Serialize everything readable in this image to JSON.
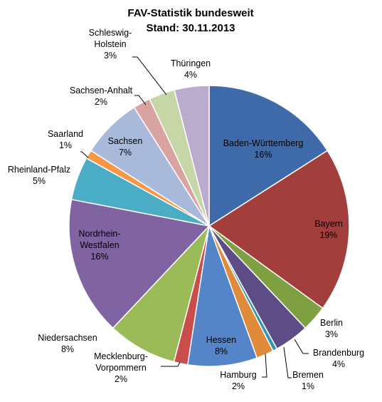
{
  "chart_data": {
    "type": "pie",
    "title": "FAV-Statistik bundesweit",
    "subtitle": "Stand: 30.11.2013",
    "slices": [
      {
        "label": "Baden-Württemberg",
        "value": 16,
        "value_label": "16%",
        "color": "#3F6AAA"
      },
      {
        "label": "Bayern",
        "value": 19,
        "value_label": "19%",
        "color": "#A23F3D"
      },
      {
        "label": "Berlin",
        "value": 3,
        "value_label": "3%",
        "color": "#7FA040"
      },
      {
        "label": "Brandenburg",
        "value": 4,
        "value_label": "4%",
        "color": "#5E4C86"
      },
      {
        "label": "Bremen",
        "value": 0.5,
        "value_label": "1%",
        "color": "#3096B1"
      },
      {
        "label": "Hamburg",
        "value": 2,
        "value_label": "2%",
        "color": "#E08A3C"
      },
      {
        "label": "Hessen",
        "value": 8,
        "value_label": "8%",
        "color": "#5385C8"
      },
      {
        "label": "Mecklenburg-Vorpommern",
        "value": 1.6,
        "value_label": "2%",
        "color": "#C94D4B"
      },
      {
        "label": "Niedersachsen",
        "value": 8,
        "value_label": "8%",
        "color": "#9BBB59"
      },
      {
        "label": "Nordrhein-Westfalen",
        "value": 16,
        "value_label": "16%",
        "color": "#8064A2"
      },
      {
        "label": "Rheinland-Pfalz",
        "value": 5,
        "value_label": "5%",
        "color": "#4BACC6"
      },
      {
        "label": "Saarland",
        "value": 1,
        "value_label": "1%",
        "color": "#F79646"
      },
      {
        "label": "Sachsen",
        "value": 7,
        "value_label": "7%",
        "color": "#A9B9D9"
      },
      {
        "label": "Sachsen-Anhalt",
        "value": 2,
        "value_label": "2%",
        "color": "#D9A3A2"
      },
      {
        "label": "Schleswig-Holstein",
        "value": 3,
        "value_label": "3%",
        "color": "#C7D6A6"
      },
      {
        "label": "Thüringen",
        "value": 4,
        "value_label": "4%",
        "color": "#B9ACCD"
      }
    ]
  }
}
